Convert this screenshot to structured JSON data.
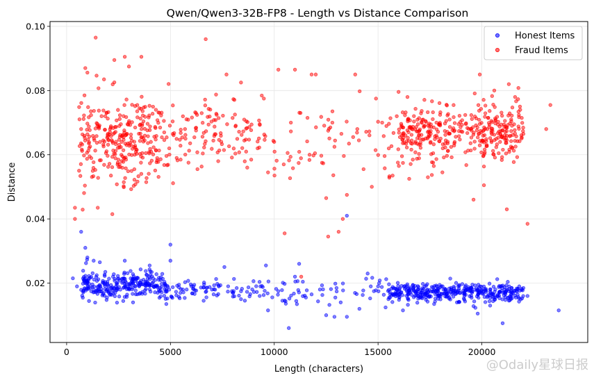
{
  "chart_data": {
    "type": "scatter",
    "title": "Qwen/Qwen3-32B-FP8 - Length vs Distance Comparison",
    "xlabel": "Length (characters)",
    "ylabel": "Distance",
    "xlim": [
      -800,
      25100
    ],
    "ylim": [
      0.0015,
      0.1015
    ],
    "xticks": [
      0,
      5000,
      10000,
      15000,
      20000
    ],
    "yticks": [
      0.02,
      0.04,
      0.06,
      0.08,
      0.1
    ],
    "ytick_labels": [
      "0.02",
      "0.04",
      "0.06",
      "0.08",
      "0.10"
    ],
    "grid": true,
    "legend_position": "top-right",
    "colors": {
      "honest": "#0000ff",
      "fraud": "#ff0000"
    },
    "series": [
      {
        "name": "Honest Items",
        "color": "#0000ff",
        "points": [
          [
            700,
            0.036
          ],
          [
            900,
            0.031
          ],
          [
            1000,
            0.028
          ],
          [
            1300,
            0.027
          ],
          [
            1600,
            0.0265
          ],
          [
            2800,
            0.027
          ],
          [
            4000,
            0.0255
          ],
          [
            5000,
            0.032
          ],
          [
            5000,
            0.027
          ],
          [
            7600,
            0.025
          ],
          [
            9600,
            0.0255
          ],
          [
            11200,
            0.026
          ],
          [
            13500,
            0.041
          ],
          [
            14500,
            0.023
          ],
          [
            11000,
            0.022
          ],
          [
            9700,
            0.0115
          ],
          [
            10700,
            0.006
          ],
          [
            12200,
            0.018
          ],
          [
            12500,
            0.01
          ],
          [
            13200,
            0.014
          ],
          [
            14100,
            0.012
          ],
          [
            13500,
            0.0095
          ],
          [
            12900,
            0.0095
          ],
          [
            15500,
            0.015
          ],
          [
            16200,
            0.0115
          ],
          [
            19800,
            0.0105
          ],
          [
            21400,
            0.015
          ],
          [
            21000,
            0.0075
          ],
          [
            22200,
            0.016
          ],
          [
            23700,
            0.0115
          ],
          [
            300,
            0.0215
          ],
          [
            500,
            0.019
          ],
          [
            800,
            0.0175
          ],
          [
            3200,
            0.014
          ],
          [
            4800,
            0.0135
          ],
          [
            6600,
            0.0145
          ],
          [
            8400,
            0.015
          ],
          [
            9300,
            0.016
          ],
          [
            11800,
            0.0165
          ],
          [
            15000,
            0.019
          ],
          [
            16600,
            0.0175
          ],
          [
            17700,
            0.0135
          ],
          [
            18800,
            0.014
          ],
          [
            20400,
            0.013
          ],
          [
            21800,
            0.019
          ],
          [
            7000,
            0.018
          ],
          [
            8000,
            0.017
          ],
          [
            10200,
            0.0175
          ],
          [
            14800,
            0.0175
          ],
          [
            13000,
            0.0185
          ],
          [
            17000,
            0.0155
          ],
          [
            22000,
            0.0185
          ]
        ]
      },
      {
        "name": "Fraud Items",
        "color": "#ff0000",
        "points": [
          [
            1400,
            0.0965
          ],
          [
            6700,
            0.096
          ],
          [
            2800,
            0.0905
          ],
          [
            3600,
            0.0905
          ],
          [
            2300,
            0.0895
          ],
          [
            3000,
            0.0875
          ],
          [
            900,
            0.087
          ],
          [
            1800,
            0.0835
          ],
          [
            10200,
            0.0865
          ],
          [
            11000,
            0.0865
          ],
          [
            11800,
            0.085
          ],
          [
            7700,
            0.085
          ],
          [
            13900,
            0.085
          ],
          [
            19900,
            0.085
          ],
          [
            8400,
            0.0825
          ],
          [
            12000,
            0.085
          ],
          [
            20600,
            0.08
          ],
          [
            21300,
            0.082
          ],
          [
            400,
            0.04
          ],
          [
            400,
            0.0435
          ],
          [
            1500,
            0.0435
          ],
          [
            2200,
            0.0415
          ],
          [
            10500,
            0.0355
          ],
          [
            13100,
            0.036
          ],
          [
            13300,
            0.04
          ],
          [
            12600,
            0.0345
          ],
          [
            11300,
            0.022
          ],
          [
            22200,
            0.0385
          ],
          [
            21200,
            0.043
          ],
          [
            19600,
            0.046
          ],
          [
            12500,
            0.0465
          ],
          [
            13500,
            0.0475
          ],
          [
            14700,
            0.05
          ],
          [
            14300,
            0.0555
          ],
          [
            16500,
            0.0525
          ],
          [
            17400,
            0.053
          ],
          [
            23300,
            0.0755
          ],
          [
            23100,
            0.068
          ],
          [
            21600,
            0.078
          ],
          [
            22000,
            0.0665
          ],
          [
            600,
            0.055
          ],
          [
            700,
            0.068
          ],
          [
            8700,
            0.056
          ],
          [
            9700,
            0.0545
          ],
          [
            11700,
            0.06
          ],
          [
            12300,
            0.0575
          ],
          [
            15700,
            0.0535
          ],
          [
            16000,
            0.0565
          ],
          [
            18100,
            0.0545
          ],
          [
            20100,
            0.0505
          ],
          [
            5300,
            0.059
          ],
          [
            6300,
            0.0555
          ],
          [
            7300,
            0.058
          ],
          [
            9200,
            0.062
          ],
          [
            10000,
            0.064
          ],
          [
            10800,
            0.07
          ],
          [
            12800,
            0.07
          ],
          [
            14000,
            0.068
          ],
          [
            15200,
            0.07
          ],
          [
            14900,
            0.0775
          ],
          [
            9500,
            0.0775
          ],
          [
            11600,
            0.0715
          ],
          [
            12900,
            0.0625
          ],
          [
            13800,
            0.0655
          ],
          [
            15900,
            0.072
          ],
          [
            12600,
            0.0675
          ]
        ]
      }
    ],
    "clusters": [
      {
        "series": 0,
        "xmin": 700,
        "xmax": 4800,
        "ymean": 0.0195,
        "ysd": 0.0022,
        "n": 270,
        "seed": 11
      },
      {
        "series": 0,
        "xmin": 4500,
        "xmax": 9500,
        "ymean": 0.0178,
        "ysd": 0.0018,
        "n": 90,
        "seed": 12
      },
      {
        "series": 0,
        "xmin": 9500,
        "xmax": 15500,
        "ymean": 0.0172,
        "ysd": 0.002,
        "n": 55,
        "seed": 13
      },
      {
        "series": 0,
        "xmin": 15500,
        "xmax": 22000,
        "ymean": 0.0172,
        "ysd": 0.0015,
        "n": 380,
        "seed": 14
      },
      {
        "series": 1,
        "xmin": 600,
        "xmax": 4500,
        "ymean": 0.0645,
        "ysd": 0.007,
        "n": 290,
        "seed": 21
      },
      {
        "series": 1,
        "xmin": 4500,
        "xmax": 9000,
        "ymean": 0.066,
        "ysd": 0.005,
        "n": 120,
        "seed": 22
      },
      {
        "series": 1,
        "xmin": 9000,
        "xmax": 16000,
        "ymean": 0.066,
        "ysd": 0.006,
        "n": 70,
        "seed": 23
      },
      {
        "series": 1,
        "xmin": 16000,
        "xmax": 22000,
        "ymean": 0.067,
        "ysd": 0.0045,
        "n": 380,
        "seed": 24
      }
    ]
  },
  "watermark": "@Odaily星球日报"
}
